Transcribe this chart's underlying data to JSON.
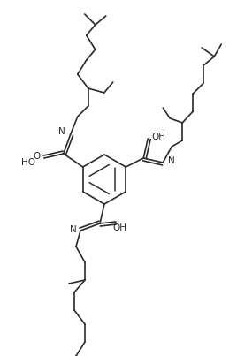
{
  "bg_color": "#ffffff",
  "line_color": "#2a2a2a",
  "line_width": 1.2,
  "font_size": 7.5,
  "figsize": [
    2.68,
    4.03
  ],
  "dpi": 100,
  "xlim": [
    0,
    268
  ],
  "ylim": [
    0,
    403
  ]
}
